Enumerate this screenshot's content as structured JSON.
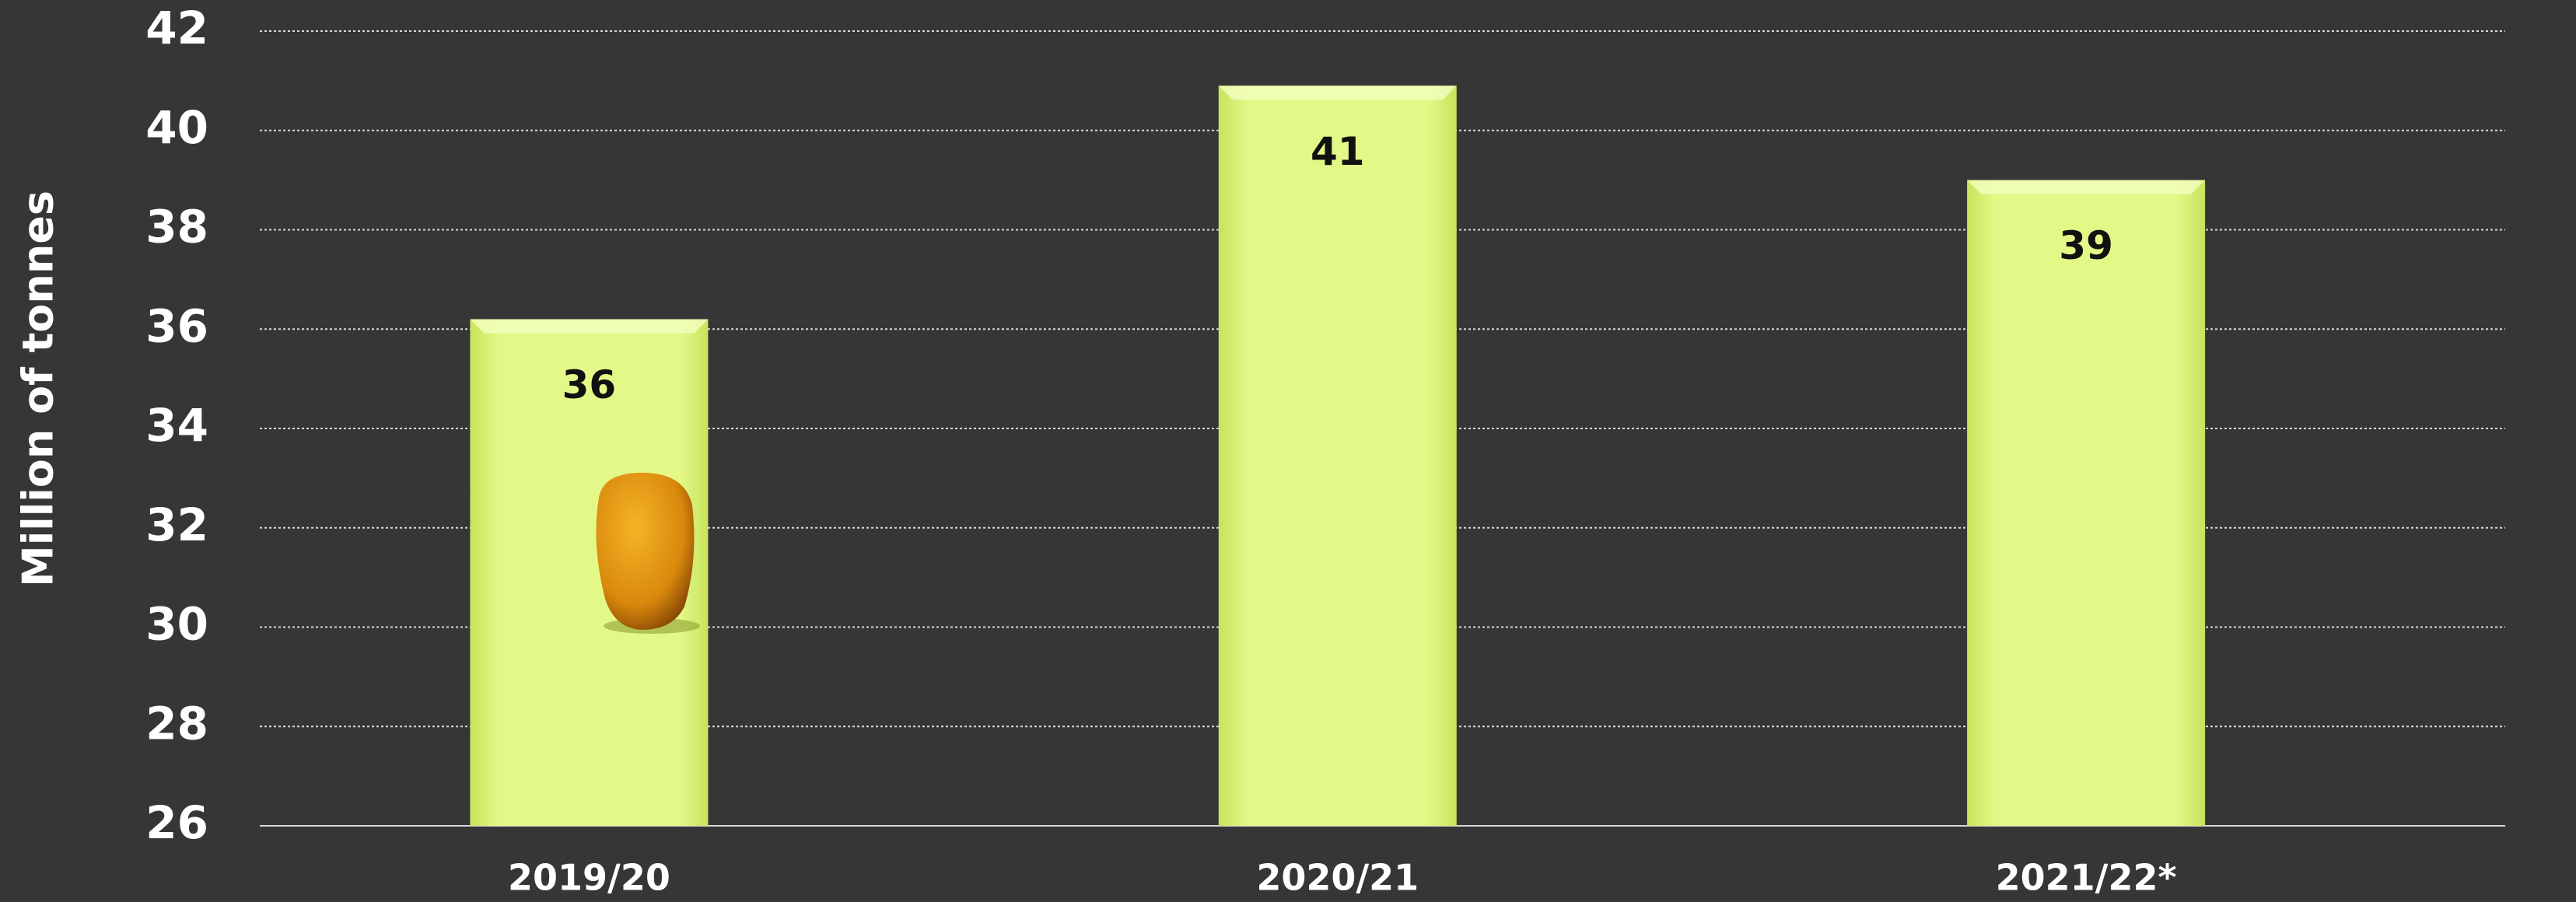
{
  "chart_data": {
    "type": "bar",
    "y_label": "Million of tonnes",
    "categories": [
      "2019/20",
      "2020/21",
      "2021/22*"
    ],
    "values": [
      36.2,
      40.9,
      39
    ],
    "value_labels": [
      "36",
      "41",
      "39"
    ],
    "color": "#dcf57a",
    "ylim": [
      26,
      42
    ],
    "yticks": [
      26,
      28,
      30,
      32,
      34,
      36,
      38,
      40,
      42
    ],
    "grid": true
  }
}
